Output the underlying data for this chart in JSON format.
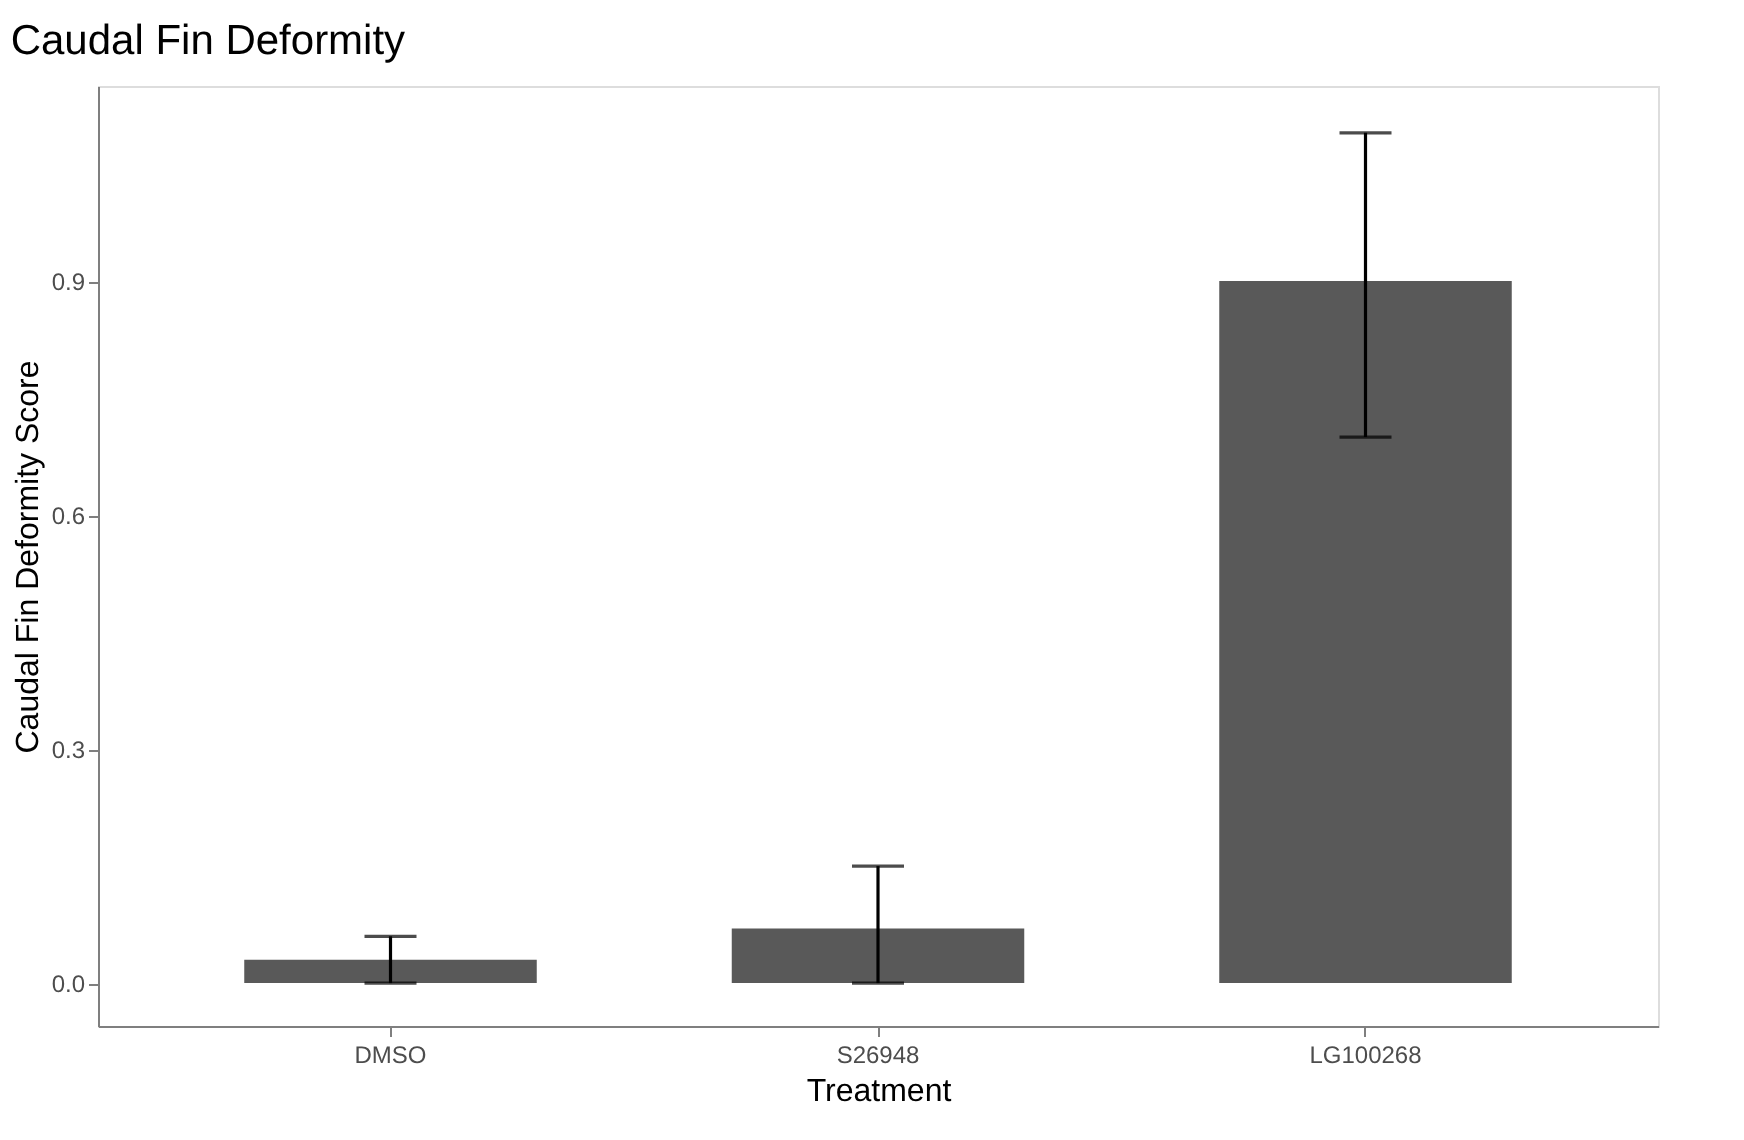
{
  "chart_data": {
    "type": "bar",
    "title": "Caudal Fin Deformity",
    "xlabel": "Treatment",
    "ylabel": "Caudal Fin Deformity Score",
    "categories": [
      "DMSO",
      "S26948",
      "LG100268"
    ],
    "values": [
      0.03,
      0.07,
      0.9
    ],
    "errors": [
      [
        0,
        0.06
      ],
      [
        0,
        0.15
      ],
      [
        0.7,
        1.09
      ]
    ],
    "color": "#595959",
    "ylim": [
      -0.055,
      1.15
    ],
    "yticks": [
      {
        "value": 0,
        "label": "0.0"
      },
      {
        "value": 0.3,
        "label": "0.3"
      },
      {
        "value": 0.6,
        "label": "0.6"
      },
      {
        "value": 0.9,
        "label": "0.9"
      }
    ],
    "grid": false
  }
}
